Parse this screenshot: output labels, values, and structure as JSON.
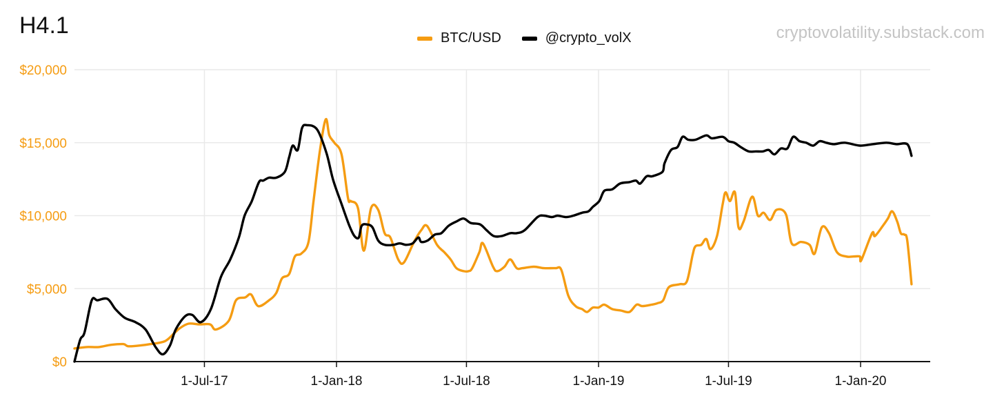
{
  "title": "H4.1",
  "watermark": "cryptovolatility.substack.com",
  "colors": {
    "btc": "#F59C12",
    "vol": "#000000",
    "grid": "#e9e9e9",
    "axis": "#111111",
    "ytick": "#F59C12"
  },
  "legend": {
    "items": [
      {
        "label": "BTC/USD",
        "color": "#F59C12"
      },
      {
        "label": "@crypto_volX",
        "color": "#000000"
      }
    ]
  },
  "chart_data": {
    "type": "line",
    "title": "H4.1",
    "xlabel": "",
    "ylabel": "",
    "xlim": [
      "2017-01-01",
      "2020-04-07"
    ],
    "ylim": [
      0,
      20000
    ],
    "y_ticks": [
      0,
      5000,
      10000,
      15000,
      20000
    ],
    "y_tick_labels": [
      "$0",
      "$5,000",
      "$10,000",
      "$15,000",
      "$20,000"
    ],
    "x_ticks": [
      "2017-07-01",
      "2018-01-01",
      "2018-07-01",
      "2019-01-01",
      "2019-07-01",
      "2020-01-01"
    ],
    "x_tick_labels": [
      "1-Jul-17",
      "1-Jan-18",
      "1-Jul-18",
      "1-Jan-19",
      "1-Jul-19",
      "1-Jan-20"
    ],
    "grid": true,
    "legend_position": "top-center",
    "series": [
      {
        "name": "BTC/USD",
        "color": "#F59C12",
        "points": [
          [
            "2017-01-01",
            900
          ],
          [
            "2017-01-18",
            1000
          ],
          [
            "2017-02-04",
            1000
          ],
          [
            "2017-02-21",
            1150
          ],
          [
            "2017-03-10",
            1200
          ],
          [
            "2017-03-17",
            1050
          ],
          [
            "2017-04-02",
            1100
          ],
          [
            "2017-04-17",
            1200
          ],
          [
            "2017-05-07",
            1400
          ],
          [
            "2017-05-20",
            1950
          ],
          [
            "2017-05-28",
            2300
          ],
          [
            "2017-06-09",
            2600
          ],
          [
            "2017-06-24",
            2550
          ],
          [
            "2017-07-09",
            2550
          ],
          [
            "2017-07-17",
            2200
          ],
          [
            "2017-08-04",
            2800
          ],
          [
            "2017-08-14",
            4200
          ],
          [
            "2017-08-27",
            4400
          ],
          [
            "2017-09-04",
            4600
          ],
          [
            "2017-09-14",
            3800
          ],
          [
            "2017-09-29",
            4200
          ],
          [
            "2017-10-09",
            4700
          ],
          [
            "2017-10-17",
            5700
          ],
          [
            "2017-10-27",
            6000
          ],
          [
            "2017-11-04",
            7200
          ],
          [
            "2017-11-13",
            7400
          ],
          [
            "2017-11-23",
            8200
          ],
          [
            "2017-11-30",
            11000
          ],
          [
            "2017-12-09",
            14500
          ],
          [
            "2017-12-17",
            16600
          ],
          [
            "2017-12-22",
            15500
          ],
          [
            "2017-12-29",
            15000
          ],
          [
            "2018-01-08",
            14200
          ],
          [
            "2018-01-17",
            11200
          ],
          [
            "2018-01-21",
            11000
          ],
          [
            "2018-01-31",
            10500
          ],
          [
            "2018-02-08",
            7600
          ],
          [
            "2018-02-18",
            10500
          ],
          [
            "2018-02-28",
            10400
          ],
          [
            "2018-03-09",
            8800
          ],
          [
            "2018-03-17",
            8500
          ],
          [
            "2018-03-28",
            7000
          ],
          [
            "2018-04-05",
            6800
          ],
          [
            "2018-04-19",
            8200
          ],
          [
            "2018-04-29",
            9000
          ],
          [
            "2018-05-07",
            9300
          ],
          [
            "2018-05-21",
            8000
          ],
          [
            "2018-05-31",
            7500
          ],
          [
            "2018-06-09",
            7000
          ],
          [
            "2018-06-17",
            6400
          ],
          [
            "2018-06-27",
            6200
          ],
          [
            "2018-07-04",
            6200
          ],
          [
            "2018-07-09",
            6400
          ],
          [
            "2018-07-19",
            7500
          ],
          [
            "2018-07-24",
            8100
          ],
          [
            "2018-08-07",
            6500
          ],
          [
            "2018-08-13",
            6200
          ],
          [
            "2018-08-23",
            6500
          ],
          [
            "2018-08-31",
            7000
          ],
          [
            "2018-09-09",
            6400
          ],
          [
            "2018-09-17",
            6400
          ],
          [
            "2018-10-03",
            6500
          ],
          [
            "2018-10-17",
            6400
          ],
          [
            "2018-11-02",
            6400
          ],
          [
            "2018-11-10",
            6300
          ],
          [
            "2018-11-20",
            4500
          ],
          [
            "2018-11-30",
            3800
          ],
          [
            "2018-12-09",
            3600
          ],
          [
            "2018-12-16",
            3400
          ],
          [
            "2018-12-24",
            3700
          ],
          [
            "2019-01-01",
            3700
          ],
          [
            "2019-01-09",
            3900
          ],
          [
            "2019-01-20",
            3600
          ],
          [
            "2019-02-01",
            3500
          ],
          [
            "2019-02-13",
            3400
          ],
          [
            "2019-02-23",
            3900
          ],
          [
            "2019-03-03",
            3800
          ],
          [
            "2019-03-16",
            3900
          ],
          [
            "2019-03-24",
            4000
          ],
          [
            "2019-04-01",
            4200
          ],
          [
            "2019-04-09",
            5100
          ],
          [
            "2019-04-24",
            5300
          ],
          [
            "2019-05-04",
            5500
          ],
          [
            "2019-05-12",
            7300
          ],
          [
            "2019-05-16",
            7900
          ],
          [
            "2019-05-24",
            8000
          ],
          [
            "2019-05-31",
            8400
          ],
          [
            "2019-06-06",
            7700
          ],
          [
            "2019-06-15",
            8600
          ],
          [
            "2019-06-23",
            10800
          ],
          [
            "2019-06-27",
            11600
          ],
          [
            "2019-07-03",
            11000
          ],
          [
            "2019-07-10",
            11600
          ],
          [
            "2019-07-15",
            9200
          ],
          [
            "2019-07-22",
            9600
          ],
          [
            "2019-08-03",
            11300
          ],
          [
            "2019-08-11",
            10000
          ],
          [
            "2019-08-19",
            10200
          ],
          [
            "2019-08-28",
            9700
          ],
          [
            "2019-09-06",
            10400
          ],
          [
            "2019-09-19",
            10100
          ],
          [
            "2019-09-27",
            8100
          ],
          [
            "2019-10-10",
            8200
          ],
          [
            "2019-10-22",
            8000
          ],
          [
            "2019-10-29",
            7400
          ],
          [
            "2019-11-08",
            9200
          ],
          [
            "2019-11-18",
            8800
          ],
          [
            "2019-11-29",
            7500
          ],
          [
            "2019-12-12",
            7200
          ],
          [
            "2019-12-22",
            7200
          ],
          [
            "2019-12-31",
            7200
          ],
          [
            "2020-01-02",
            6950
          ],
          [
            "2020-01-17",
            8800
          ],
          [
            "2020-01-21",
            8600
          ],
          [
            "2020-02-01",
            9300
          ],
          [
            "2020-02-08",
            9800
          ],
          [
            "2020-02-14",
            10300
          ],
          [
            "2020-02-21",
            9600
          ],
          [
            "2020-02-26",
            8800
          ],
          [
            "2020-03-02",
            8700
          ],
          [
            "2020-03-06",
            8300
          ],
          [
            "2020-03-12",
            5300
          ]
        ]
      },
      {
        "name": "@crypto_volX",
        "color": "#000000",
        "points": [
          [
            "2017-01-01",
            0
          ],
          [
            "2017-01-09",
            1500
          ],
          [
            "2017-01-15",
            2000
          ],
          [
            "2017-01-25",
            4200
          ],
          [
            "2017-02-02",
            4200
          ],
          [
            "2017-02-16",
            4300
          ],
          [
            "2017-02-27",
            3600
          ],
          [
            "2017-03-12",
            3000
          ],
          [
            "2017-03-27",
            2700
          ],
          [
            "2017-04-10",
            2200
          ],
          [
            "2017-04-24",
            1000
          ],
          [
            "2017-05-04",
            500
          ],
          [
            "2017-05-14",
            1100
          ],
          [
            "2017-05-22",
            2200
          ],
          [
            "2017-06-04",
            3100
          ],
          [
            "2017-06-14",
            3200
          ],
          [
            "2017-06-26",
            2700
          ],
          [
            "2017-07-10",
            3600
          ],
          [
            "2017-07-24",
            5800
          ],
          [
            "2017-08-06",
            7000
          ],
          [
            "2017-08-18",
            8500
          ],
          [
            "2017-08-26",
            10000
          ],
          [
            "2017-09-05",
            11000
          ],
          [
            "2017-09-15",
            12300
          ],
          [
            "2017-09-21",
            12400
          ],
          [
            "2017-09-29",
            12600
          ],
          [
            "2017-10-09",
            12600
          ],
          [
            "2017-10-21",
            13000
          ],
          [
            "2017-10-27",
            14000
          ],
          [
            "2017-11-01",
            14800
          ],
          [
            "2017-11-08",
            14500
          ],
          [
            "2017-11-14",
            16000
          ],
          [
            "2017-11-21",
            16200
          ],
          [
            "2017-12-05",
            15900
          ],
          [
            "2017-12-18",
            14300
          ],
          [
            "2017-12-27",
            12500
          ],
          [
            "2018-01-08",
            10800
          ],
          [
            "2018-01-19",
            9300
          ],
          [
            "2018-01-26",
            8600
          ],
          [
            "2018-02-01",
            8500
          ],
          [
            "2018-02-05",
            9300
          ],
          [
            "2018-02-12",
            9400
          ],
          [
            "2018-02-20",
            9200
          ],
          [
            "2018-02-28",
            8300
          ],
          [
            "2018-03-09",
            8000
          ],
          [
            "2018-03-21",
            8000
          ],
          [
            "2018-03-30",
            8100
          ],
          [
            "2018-04-08",
            8000
          ],
          [
            "2018-04-17",
            8100
          ],
          [
            "2018-04-25",
            8500
          ],
          [
            "2018-04-29",
            8200
          ],
          [
            "2018-05-08",
            8300
          ],
          [
            "2018-05-18",
            8700
          ],
          [
            "2018-05-27",
            8800
          ],
          [
            "2018-06-06",
            9300
          ],
          [
            "2018-06-17",
            9600
          ],
          [
            "2018-06-27",
            9800
          ],
          [
            "2018-07-07",
            9500
          ],
          [
            "2018-07-20",
            9400
          ],
          [
            "2018-07-29",
            9000
          ],
          [
            "2018-08-08",
            8600
          ],
          [
            "2018-08-19",
            8600
          ],
          [
            "2018-08-31",
            8800
          ],
          [
            "2018-09-09",
            8800
          ],
          [
            "2018-09-20",
            9000
          ],
          [
            "2018-10-08",
            9900
          ],
          [
            "2018-10-17",
            10000
          ],
          [
            "2018-10-28",
            9900
          ],
          [
            "2018-11-05",
            10000
          ],
          [
            "2018-11-17",
            9900
          ],
          [
            "2018-11-27",
            10000
          ],
          [
            "2018-12-09",
            10200
          ],
          [
            "2018-12-18",
            10300
          ],
          [
            "2018-12-24",
            10600
          ],
          [
            "2019-01-02",
            11000
          ],
          [
            "2019-01-09",
            11700
          ],
          [
            "2019-01-20",
            11800
          ],
          [
            "2019-01-31",
            12200
          ],
          [
            "2019-02-13",
            12300
          ],
          [
            "2019-02-22",
            12400
          ],
          [
            "2019-02-28",
            12200
          ],
          [
            "2019-03-09",
            12700
          ],
          [
            "2019-03-17",
            12700
          ],
          [
            "2019-03-31",
            13000
          ],
          [
            "2019-04-03",
            13600
          ],
          [
            "2019-04-12",
            14500
          ],
          [
            "2019-04-21",
            14700
          ],
          [
            "2019-04-28",
            15400
          ],
          [
            "2019-05-06",
            15200
          ],
          [
            "2019-05-16",
            15200
          ],
          [
            "2019-05-31",
            15500
          ],
          [
            "2019-06-08",
            15300
          ],
          [
            "2019-06-23",
            15400
          ],
          [
            "2019-07-01",
            15100
          ],
          [
            "2019-07-09",
            15000
          ],
          [
            "2019-07-18",
            14700
          ],
          [
            "2019-07-29",
            14400
          ],
          [
            "2019-08-08",
            14400
          ],
          [
            "2019-08-18",
            14400
          ],
          [
            "2019-08-26",
            14500
          ],
          [
            "2019-09-03",
            14200
          ],
          [
            "2019-09-12",
            14600
          ],
          [
            "2019-09-21",
            14600
          ],
          [
            "2019-09-29",
            15400
          ],
          [
            "2019-10-08",
            15100
          ],
          [
            "2019-10-17",
            15000
          ],
          [
            "2019-10-27",
            14800
          ],
          [
            "2019-11-05",
            15100
          ],
          [
            "2019-11-14",
            15000
          ],
          [
            "2019-11-25",
            14900
          ],
          [
            "2019-12-10",
            15000
          ],
          [
            "2019-12-31",
            14800
          ],
          [
            "2020-01-18",
            14900
          ],
          [
            "2020-02-06",
            15000
          ],
          [
            "2020-02-20",
            14900
          ],
          [
            "2020-03-06",
            14900
          ],
          [
            "2020-03-12",
            14100
          ]
        ]
      }
    ]
  }
}
